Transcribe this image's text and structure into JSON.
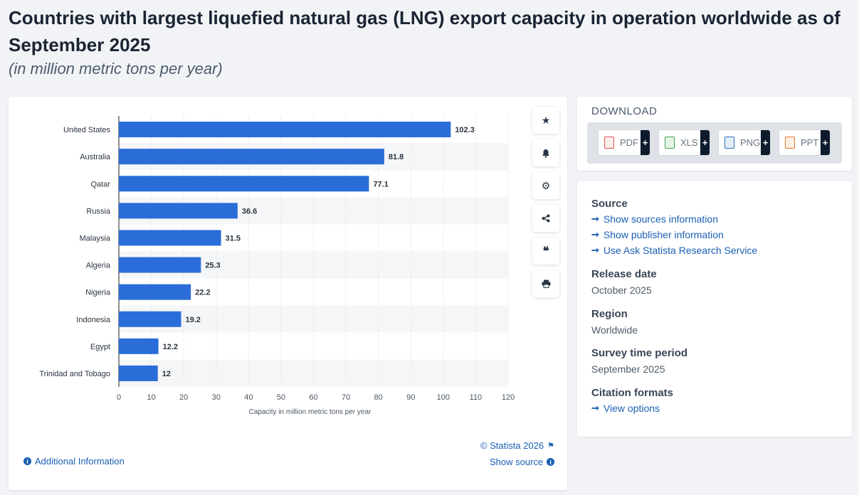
{
  "header": {
    "title": "Countries with largest liquefied natural gas (LNG) export capacity in operation worldwide as of September 2025",
    "subtitle": "(in million metric tons per year)"
  },
  "chart_data": {
    "type": "bar",
    "orientation": "horizontal",
    "categories": [
      "United States",
      "Australia",
      "Qatar",
      "Russia",
      "Malaysia",
      "Algeria",
      "Nigeria",
      "Indonesia",
      "Egypt",
      "Trinidad and Tobago"
    ],
    "values": [
      102.3,
      81.8,
      77.1,
      36.6,
      31.5,
      25.3,
      22.2,
      19.2,
      12.2,
      12
    ],
    "value_labels": [
      "102.3",
      "81.8",
      "77.1",
      "36.6",
      "31.5",
      "25.3",
      "22.2",
      "19.2",
      "12.2",
      "12"
    ],
    "xlabel": "Capacity in million metric tons per year",
    "xlim": [
      0,
      120
    ],
    "xticks": [
      0,
      10,
      20,
      30,
      40,
      50,
      60,
      70,
      80,
      90,
      100,
      110,
      120
    ],
    "grid": true,
    "bar_color": "#2a6dd9"
  },
  "chart_footer": {
    "copyright": "© Statista 2026",
    "additional_info": "Additional Information",
    "show_source": "Show source"
  },
  "toolbar": {
    "icons": [
      "star-icon",
      "bell-icon",
      "gear-icon",
      "share-icon",
      "quote-icon",
      "print-icon"
    ]
  },
  "download": {
    "title": "DOWNLOAD",
    "formats": [
      {
        "label": "PDF",
        "color": "#d9534f"
      },
      {
        "label": "XLS",
        "color": "#3fa34d"
      },
      {
        "label": "PNG",
        "color": "#2f6fb5"
      },
      {
        "label": "PPT",
        "color": "#e8792a"
      }
    ],
    "plus": "+"
  },
  "info": {
    "source_heading": "Source",
    "source_links": [
      "Show sources information",
      "Show publisher information",
      "Use Ask Statista Research Service"
    ],
    "release_heading": "Release date",
    "release_value": "October 2025",
    "region_heading": "Region",
    "region_value": "Worldwide",
    "survey_heading": "Survey time period",
    "survey_value": "September 2025",
    "citation_heading": "Citation formats",
    "citation_link": "View options"
  }
}
